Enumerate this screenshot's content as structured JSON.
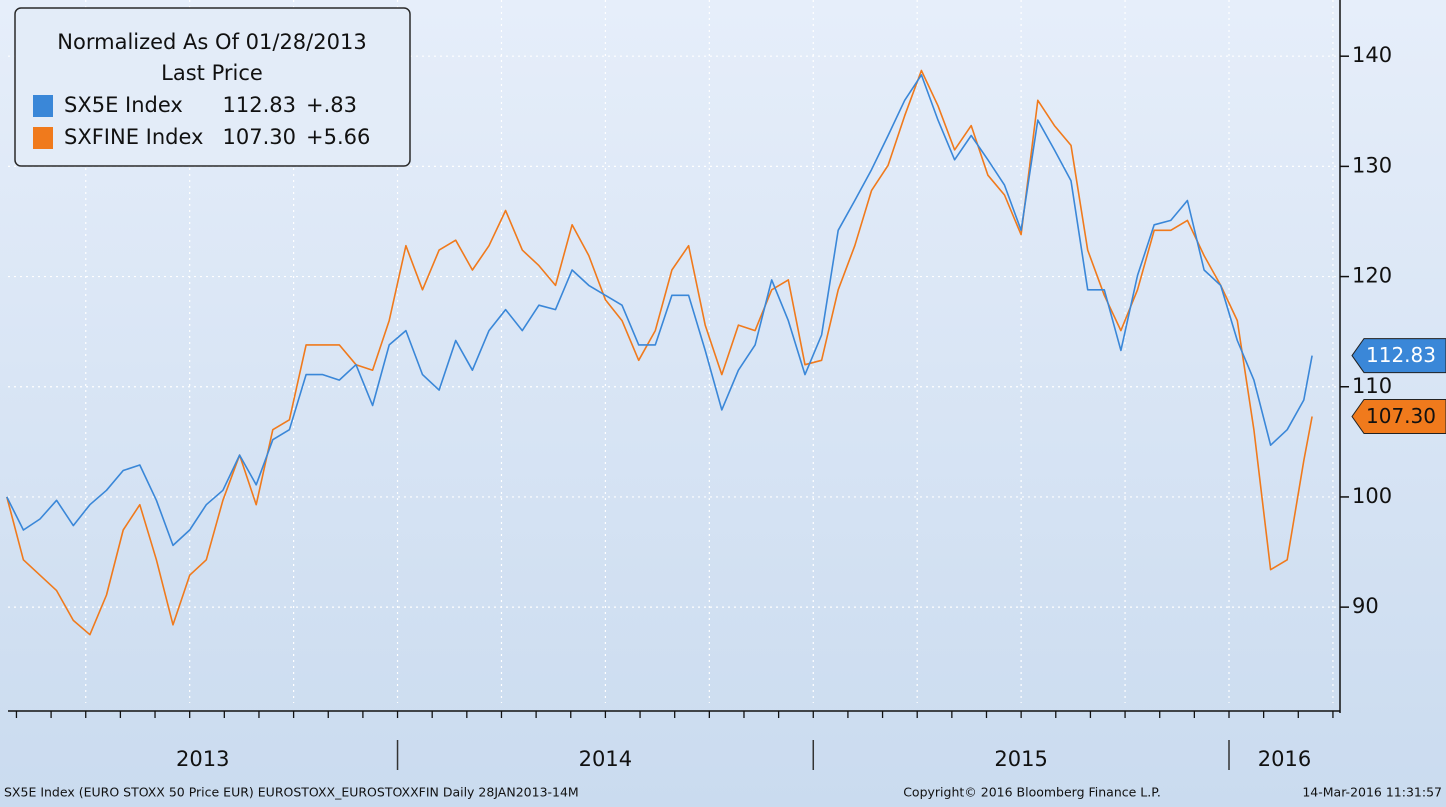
{
  "chart_data": {
    "type": "line",
    "legend_title": "Normalized As Of 01/28/2013",
    "legend_subtitle": "Last Price",
    "x": [
      2013.06,
      2013.1,
      2013.14,
      2013.18,
      2013.22,
      2013.26,
      2013.3,
      2013.34,
      2013.38,
      2013.42,
      2013.46,
      2013.5,
      2013.54,
      2013.58,
      2013.62,
      2013.66,
      2013.7,
      2013.74,
      2013.78,
      2013.82,
      2013.86,
      2013.9,
      2013.94,
      2013.98,
      2014.02,
      2014.06,
      2014.1,
      2014.14,
      2014.18,
      2014.22,
      2014.26,
      2014.3,
      2014.34,
      2014.38,
      2014.42,
      2014.46,
      2014.5,
      2014.54,
      2014.58,
      2014.62,
      2014.66,
      2014.7,
      2014.74,
      2014.78,
      2014.82,
      2014.86,
      2014.9,
      2014.94,
      2014.98,
      2015.02,
      2015.06,
      2015.1,
      2015.14,
      2015.18,
      2015.22,
      2015.26,
      2015.3,
      2015.34,
      2015.38,
      2015.42,
      2015.46,
      2015.5,
      2015.54,
      2015.58,
      2015.62,
      2015.66,
      2015.7,
      2015.74,
      2015.78,
      2015.82,
      2015.86,
      2015.9,
      2015.94,
      2015.98,
      2016.02,
      2016.06,
      2016.1,
      2016.14,
      2016.18,
      2016.2
    ],
    "series": [
      {
        "name": "SX5E Index",
        "color": "#3a87d8",
        "last_value": 112.83,
        "last_label": "112.83",
        "change": 0.83,
        "change_label": "+.83",
        "values": [
          100,
          97,
          98,
          99.7,
          97.4,
          99.3,
          100.6,
          102.4,
          102.9,
          99.7,
          95.6,
          97,
          99.3,
          100.6,
          103.8,
          101.1,
          105.2,
          106.1,
          111.1,
          111.1,
          110.6,
          112,
          108.3,
          113.8,
          115.1,
          111.1,
          109.7,
          114.2,
          111.5,
          115.1,
          117,
          115.1,
          117.4,
          117,
          120.6,
          119.2,
          118.3,
          117.4,
          113.8,
          113.8,
          118.3,
          118.3,
          113.3,
          107.9,
          111.5,
          113.8,
          119.7,
          116,
          111.1,
          114.7,
          124.2,
          126.9,
          129.7,
          132.8,
          136,
          138.3,
          134.2,
          130.6,
          132.8,
          130.6,
          128.3,
          124.2,
          134.2,
          131.5,
          128.7,
          118.8,
          118.8,
          113.3,
          120.1,
          124.7,
          125.1,
          126.9,
          120.6,
          119.2,
          114.2,
          110.6,
          104.7,
          106.1,
          108.8,
          112.83
        ]
      },
      {
        "name": "SXFINE Index",
        "color": "#f07a1c",
        "last_value": 107.3,
        "last_label": "107.30",
        "change": 5.66,
        "change_label": "+5.66",
        "values": [
          100,
          94.3,
          92.9,
          91.5,
          88.8,
          87.5,
          91.1,
          97,
          99.3,
          94.3,
          88.4,
          92.9,
          94.3,
          99.7,
          103.8,
          99.3,
          106.1,
          107,
          113.8,
          113.8,
          113.8,
          112,
          111.5,
          116,
          122.8,
          118.8,
          122.4,
          123.3,
          120.6,
          122.8,
          126,
          122.4,
          121,
          119.2,
          124.7,
          121.9,
          117.9,
          116,
          112.4,
          115.1,
          120.6,
          122.8,
          115.6,
          111.1,
          115.6,
          115.1,
          118.8,
          119.7,
          112,
          112.4,
          118.8,
          122.8,
          127.8,
          130.1,
          134.6,
          138.7,
          135.5,
          131.5,
          133.7,
          129.2,
          127.4,
          123.8,
          136,
          133.7,
          131.9,
          122.4,
          118.3,
          115.1,
          118.8,
          124.2,
          124.2,
          125.1,
          121.9,
          119.2,
          116,
          106.1,
          93.4,
          94.3,
          103.3,
          107.3
        ]
      }
    ],
    "xlim": [
      2013.063,
      2016.267
    ],
    "xticks": [
      2013,
      2014,
      2015,
      2016
    ],
    "ylim": [
      81.3,
      145.1
    ],
    "yticks": [
      90,
      100,
      110,
      120,
      130,
      140
    ],
    "grid": true,
    "footer_left": "SX5E Index (EURO STOXX 50 Price EUR) EUROSTOXX_EUROSTOXXFIN  Daily 28JAN2013-14M",
    "footer_center": "Copyright© 2016 Bloomberg Finance L.P.",
    "footer_right": "14-Mar-2016 11:31:57"
  }
}
